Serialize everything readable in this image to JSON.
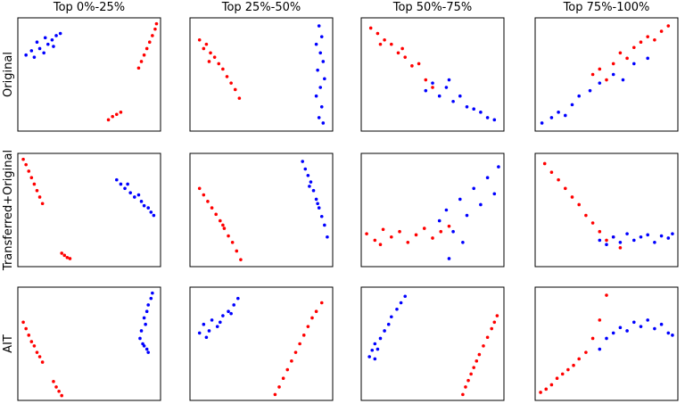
{
  "chart_data": [
    {
      "type": "scatter",
      "title": "Top 0%-25%",
      "ylabel": "Original",
      "xlim": [
        0,
        1
      ],
      "ylim": [
        0,
        1
      ],
      "series": [
        {
          "color": "blue",
          "x": [
            0.04,
            0.08,
            0.1,
            0.14,
            0.17,
            0.2,
            0.23,
            0.26,
            0.29,
            0.12,
            0.18,
            0.24
          ],
          "y": [
            0.68,
            0.72,
            0.66,
            0.74,
            0.7,
            0.78,
            0.82,
            0.86,
            0.88,
            0.8,
            0.84,
            0.76
          ]
        },
        {
          "color": "red",
          "x": [
            0.86,
            0.88,
            0.9,
            0.92,
            0.94,
            0.96,
            0.98,
            0.99,
            0.64,
            0.67,
            0.7,
            0.73
          ],
          "y": [
            0.56,
            0.62,
            0.68,
            0.74,
            0.8,
            0.86,
            0.92,
            0.97,
            0.08,
            0.11,
            0.13,
            0.15
          ]
        }
      ]
    },
    {
      "type": "scatter",
      "title": "Top 25%-50%",
      "xlim": [
        0,
        1
      ],
      "ylim": [
        0,
        1
      ],
      "series": [
        {
          "color": "red",
          "x": [
            0.05,
            0.08,
            0.1,
            0.13,
            0.16,
            0.19,
            0.22,
            0.25,
            0.28,
            0.31,
            0.34,
            0.12
          ],
          "y": [
            0.82,
            0.74,
            0.78,
            0.7,
            0.66,
            0.6,
            0.55,
            0.48,
            0.42,
            0.36,
            0.28,
            0.62
          ]
        },
        {
          "color": "blue",
          "x": [
            0.92,
            0.94,
            0.9,
            0.93,
            0.95,
            0.91,
            0.96,
            0.93,
            0.9,
            0.94,
            0.92,
            0.95
          ],
          "y": [
            0.95,
            0.85,
            0.78,
            0.7,
            0.62,
            0.54,
            0.46,
            0.38,
            0.3,
            0.2,
            0.1,
            0.05
          ]
        }
      ]
    },
    {
      "type": "scatter",
      "title": "Top 50%-75%",
      "xlim": [
        0,
        1
      ],
      "ylim": [
        0,
        1
      ],
      "series": [
        {
          "color": "red",
          "x": [
            0.05,
            0.1,
            0.15,
            0.2,
            0.25,
            0.3,
            0.35,
            0.4,
            0.45,
            0.5,
            0.12,
            0.28
          ],
          "y": [
            0.93,
            0.88,
            0.82,
            0.78,
            0.7,
            0.66,
            0.58,
            0.6,
            0.45,
            0.38,
            0.78,
            0.74
          ]
        },
        {
          "color": "blue",
          "x": [
            0.45,
            0.5,
            0.55,
            0.6,
            0.65,
            0.7,
            0.75,
            0.8,
            0.85,
            0.9,
            0.95,
            0.62
          ],
          "y": [
            0.35,
            0.42,
            0.3,
            0.38,
            0.25,
            0.3,
            0.2,
            0.18,
            0.15,
            0.1,
            0.08,
            0.45
          ]
        }
      ]
    },
    {
      "type": "scatter",
      "title": "Top 75%-100%",
      "xlim": [
        0,
        1
      ],
      "ylim": [
        0,
        1
      ],
      "series": [
        {
          "color": "blue",
          "x": [
            0.03,
            0.1,
            0.15,
            0.2,
            0.25,
            0.3,
            0.38,
            0.45,
            0.55,
            0.62,
            0.7,
            0.8
          ],
          "y": [
            0.05,
            0.1,
            0.15,
            0.12,
            0.22,
            0.3,
            0.35,
            0.42,
            0.5,
            0.45,
            0.6,
            0.65
          ]
        },
        {
          "color": "red",
          "x": [
            0.4,
            0.45,
            0.5,
            0.55,
            0.6,
            0.65,
            0.7,
            0.75,
            0.8,
            0.85,
            0.9,
            0.95
          ],
          "y": [
            0.5,
            0.55,
            0.45,
            0.6,
            0.7,
            0.65,
            0.75,
            0.8,
            0.85,
            0.82,
            0.9,
            0.95
          ]
        }
      ]
    },
    {
      "type": "scatter",
      "ylabel": "Transferred+Original",
      "xlim": [
        0,
        1
      ],
      "ylim": [
        0,
        1
      ],
      "series": [
        {
          "color": "red",
          "x": [
            0.02,
            0.04,
            0.06,
            0.08,
            0.1,
            0.12,
            0.14,
            0.16,
            0.3,
            0.32,
            0.34,
            0.36
          ],
          "y": [
            0.97,
            0.92,
            0.86,
            0.8,
            0.74,
            0.68,
            0.62,
            0.56,
            0.1,
            0.08,
            0.06,
            0.05
          ]
        },
        {
          "color": "blue",
          "x": [
            0.7,
            0.73,
            0.76,
            0.78,
            0.8,
            0.83,
            0.86,
            0.88,
            0.9,
            0.93,
            0.95,
            0.97
          ],
          "y": [
            0.78,
            0.74,
            0.7,
            0.74,
            0.66,
            0.62,
            0.64,
            0.58,
            0.54,
            0.52,
            0.48,
            0.45
          ]
        }
      ]
    },
    {
      "type": "scatter",
      "xlim": [
        0,
        1
      ],
      "ylim": [
        0,
        1
      ],
      "series": [
        {
          "color": "red",
          "x": [
            0.05,
            0.08,
            0.11,
            0.14,
            0.17,
            0.2,
            0.23,
            0.26,
            0.29,
            0.32,
            0.35,
            0.22
          ],
          "y": [
            0.7,
            0.64,
            0.58,
            0.52,
            0.46,
            0.4,
            0.33,
            0.26,
            0.2,
            0.12,
            0.04,
            0.36
          ]
        },
        {
          "color": "blue",
          "x": [
            0.8,
            0.82,
            0.84,
            0.86,
            0.88,
            0.9,
            0.92,
            0.94,
            0.96,
            0.98,
            0.85,
            0.91
          ],
          "y": [
            0.95,
            0.88,
            0.82,
            0.76,
            0.68,
            0.6,
            0.52,
            0.44,
            0.36,
            0.25,
            0.72,
            0.56
          ]
        }
      ]
    },
    {
      "type": "scatter",
      "xlim": [
        0,
        1
      ],
      "ylim": [
        0,
        1
      ],
      "series": [
        {
          "color": "red",
          "x": [
            0.02,
            0.08,
            0.14,
            0.2,
            0.26,
            0.32,
            0.38,
            0.44,
            0.5,
            0.56,
            0.62,
            0.12
          ],
          "y": [
            0.28,
            0.22,
            0.32,
            0.25,
            0.3,
            0.2,
            0.27,
            0.33,
            0.24,
            0.3,
            0.35,
            0.18
          ]
        },
        {
          "color": "blue",
          "x": [
            0.55,
            0.6,
            0.65,
            0.7,
            0.75,
            0.8,
            0.85,
            0.9,
            0.95,
            0.98,
            0.72,
            0.62
          ],
          "y": [
            0.4,
            0.5,
            0.3,
            0.6,
            0.45,
            0.7,
            0.55,
            0.8,
            0.65,
            0.9,
            0.2,
            0.05
          ]
        }
      ]
    },
    {
      "type": "scatter",
      "xlim": [
        0,
        1
      ],
      "ylim": [
        0,
        1
      ],
      "series": [
        {
          "color": "red",
          "x": [
            0.05,
            0.1,
            0.15,
            0.2,
            0.25,
            0.3,
            0.35,
            0.4,
            0.45,
            0.5,
            0.55,
            0.6
          ],
          "y": [
            0.93,
            0.85,
            0.78,
            0.7,
            0.62,
            0.55,
            0.45,
            0.38,
            0.3,
            0.22,
            0.25,
            0.15
          ]
        },
        {
          "color": "blue",
          "x": [
            0.45,
            0.5,
            0.55,
            0.6,
            0.65,
            0.7,
            0.75,
            0.8,
            0.85,
            0.9,
            0.95,
            0.98
          ],
          "y": [
            0.22,
            0.18,
            0.25,
            0.2,
            0.28,
            0.22,
            0.25,
            0.27,
            0.2,
            0.26,
            0.24,
            0.28
          ]
        }
      ]
    },
    {
      "type": "scatter",
      "ylabel": "AIT",
      "xlim": [
        0,
        1
      ],
      "ylim": [
        0,
        1
      ],
      "series": [
        {
          "color": "red",
          "x": [
            0.02,
            0.04,
            0.06,
            0.08,
            0.1,
            0.12,
            0.14,
            0.24,
            0.26,
            0.28,
            0.3,
            0.16
          ],
          "y": [
            0.7,
            0.64,
            0.58,
            0.52,
            0.48,
            0.42,
            0.38,
            0.15,
            0.1,
            0.06,
            0.02,
            0.33
          ]
        },
        {
          "color": "blue",
          "x": [
            0.96,
            0.95,
            0.93,
            0.92,
            0.9,
            0.91,
            0.88,
            0.87,
            0.9,
            0.93,
            0.89,
            0.92
          ],
          "y": [
            0.97,
            0.92,
            0.86,
            0.8,
            0.74,
            0.68,
            0.62,
            0.55,
            0.48,
            0.42,
            0.5,
            0.45
          ]
        }
      ]
    },
    {
      "type": "scatter",
      "xlim": [
        0,
        1
      ],
      "ylim": [
        0,
        1
      ],
      "series": [
        {
          "color": "blue",
          "x": [
            0.05,
            0.08,
            0.1,
            0.14,
            0.18,
            0.22,
            0.26,
            0.3,
            0.33,
            0.12,
            0.2,
            0.28
          ],
          "y": [
            0.6,
            0.68,
            0.56,
            0.72,
            0.66,
            0.76,
            0.8,
            0.86,
            0.92,
            0.62,
            0.7,
            0.78
          ]
        },
        {
          "color": "red",
          "x": [
            0.6,
            0.63,
            0.66,
            0.69,
            0.72,
            0.75,
            0.78,
            0.81,
            0.84,
            0.87,
            0.9,
            0.94
          ],
          "y": [
            0.03,
            0.1,
            0.18,
            0.26,
            0.34,
            0.42,
            0.5,
            0.58,
            0.66,
            0.74,
            0.8,
            0.88
          ]
        }
      ]
    },
    {
      "type": "scatter",
      "xlim": [
        0,
        1
      ],
      "ylim": [
        0,
        1
      ],
      "series": [
        {
          "color": "blue",
          "x": [
            0.04,
            0.06,
            0.08,
            0.1,
            0.12,
            0.15,
            0.18,
            0.2,
            0.24,
            0.27,
            0.3,
            0.08
          ],
          "y": [
            0.38,
            0.44,
            0.5,
            0.45,
            0.55,
            0.62,
            0.68,
            0.75,
            0.82,
            0.88,
            0.94,
            0.36
          ]
        },
        {
          "color": "red",
          "x": [
            0.72,
            0.74,
            0.76,
            0.78,
            0.8,
            0.82,
            0.84,
            0.87,
            0.9,
            0.93,
            0.95,
            0.97
          ],
          "y": [
            0.03,
            0.1,
            0.16,
            0.22,
            0.28,
            0.34,
            0.4,
            0.48,
            0.56,
            0.64,
            0.7,
            0.76
          ]
        }
      ]
    },
    {
      "type": "scatter",
      "xlim": [
        0,
        1
      ],
      "ylim": [
        0,
        1
      ],
      "series": [
        {
          "color": "red",
          "x": [
            0.02,
            0.06,
            0.1,
            0.14,
            0.18,
            0.22,
            0.26,
            0.3,
            0.35,
            0.4,
            0.45,
            0.5
          ],
          "y": [
            0.05,
            0.08,
            0.12,
            0.18,
            0.22,
            0.26,
            0.3,
            0.36,
            0.42,
            0.55,
            0.72,
            0.95
          ]
        },
        {
          "color": "blue",
          "x": [
            0.45,
            0.5,
            0.55,
            0.6,
            0.65,
            0.7,
            0.75,
            0.8,
            0.85,
            0.9,
            0.95,
            0.98
          ],
          "y": [
            0.45,
            0.55,
            0.6,
            0.65,
            0.62,
            0.7,
            0.66,
            0.72,
            0.64,
            0.68,
            0.6,
            0.58
          ]
        }
      ]
    }
  ]
}
